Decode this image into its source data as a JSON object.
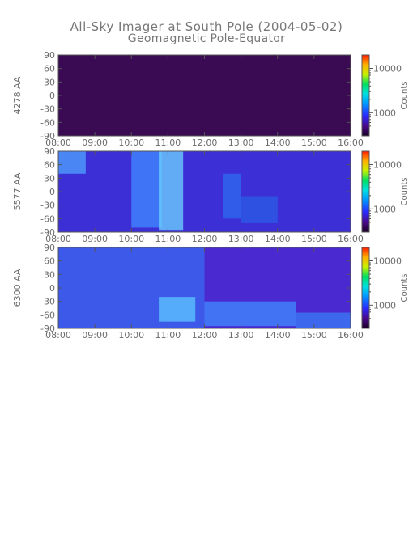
{
  "title_line1": "All-Sky Imager at South Pole (2004-05-02)",
  "title_line2": "Geomagnetic Pole-Equator",
  "colorbar_label": "Counts",
  "chart_data": [
    {
      "type": "heatmap",
      "ylabel": "4278 AA",
      "x_ticks": [
        "08:00",
        "09:00",
        "10:00",
        "11:00",
        "12:00",
        "13:00",
        "14:00",
        "15:00",
        "16:00"
      ],
      "xlim": [
        "08:00",
        "16:00"
      ],
      "y_ticks": [
        90,
        60,
        30,
        0,
        -30,
        -60,
        -90
      ],
      "ylim": [
        -90,
        90
      ],
      "colorbar_ticks": [
        10000,
        1000
      ],
      "colorbar_scale": "log",
      "bands": [],
      "base_color": "#3a0b52"
    },
    {
      "type": "heatmap",
      "ylabel": "5577 AA",
      "x_ticks": [
        "08:00",
        "09:00",
        "10:00",
        "11:00",
        "12:00",
        "13:00",
        "14:00",
        "15:00",
        "16:00"
      ],
      "xlim": [
        "08:00",
        "16:00"
      ],
      "y_ticks": [
        90,
        60,
        30,
        0,
        -30,
        -60,
        -90
      ],
      "ylim": [
        -90,
        90
      ],
      "colorbar_ticks": [
        10000,
        1000
      ],
      "colorbar_scale": "log",
      "base_color": "#3d2fd6",
      "bands": [
        {
          "t0": "08:00",
          "t1": "08:45",
          "lat0": 40,
          "lat1": 90,
          "color": "#4fa6ff"
        },
        {
          "t0": "10:00",
          "t1": "10:50",
          "lat0": -80,
          "lat1": 90,
          "color": "#3f8cff"
        },
        {
          "t0": "10:45",
          "t1": "11:25",
          "lat0": -85,
          "lat1": 90,
          "color": "#6fd6ff"
        },
        {
          "t0": "12:30",
          "t1": "13:00",
          "lat0": -60,
          "lat1": 40,
          "color": "#2d6cf0"
        },
        {
          "t0": "13:00",
          "t1": "14:00",
          "lat0": -70,
          "lat1": -10,
          "color": "#2a5ee6"
        }
      ]
    },
    {
      "type": "heatmap",
      "ylabel": "6300 AA",
      "x_ticks": [
        "08:00",
        "09:00",
        "10:00",
        "11:00",
        "12:00",
        "13:00",
        "14:00",
        "15:00",
        "16:00"
      ],
      "xlim": [
        "08:00",
        "16:00"
      ],
      "y_ticks": [
        90,
        60,
        30,
        0,
        -30,
        -60,
        -90
      ],
      "ylim": [
        -90,
        90
      ],
      "colorbar_ticks": [
        10000,
        1000
      ],
      "colorbar_scale": "log",
      "base_color": "#4a2ad0",
      "bands": [
        {
          "t0": "08:00",
          "t1": "12:00",
          "lat0": -90,
          "lat1": 90,
          "color": "#3a6af2"
        },
        {
          "t0": "10:45",
          "t1": "11:45",
          "lat0": -75,
          "lat1": -20,
          "color": "#5ec8ff"
        },
        {
          "t0": "12:00",
          "t1": "14:30",
          "lat0": -85,
          "lat1": -30,
          "color": "#3f8cff"
        },
        {
          "t0": "14:30",
          "t1": "16:00",
          "lat0": -90,
          "lat1": -55,
          "color": "#3a7cf7"
        }
      ]
    }
  ]
}
